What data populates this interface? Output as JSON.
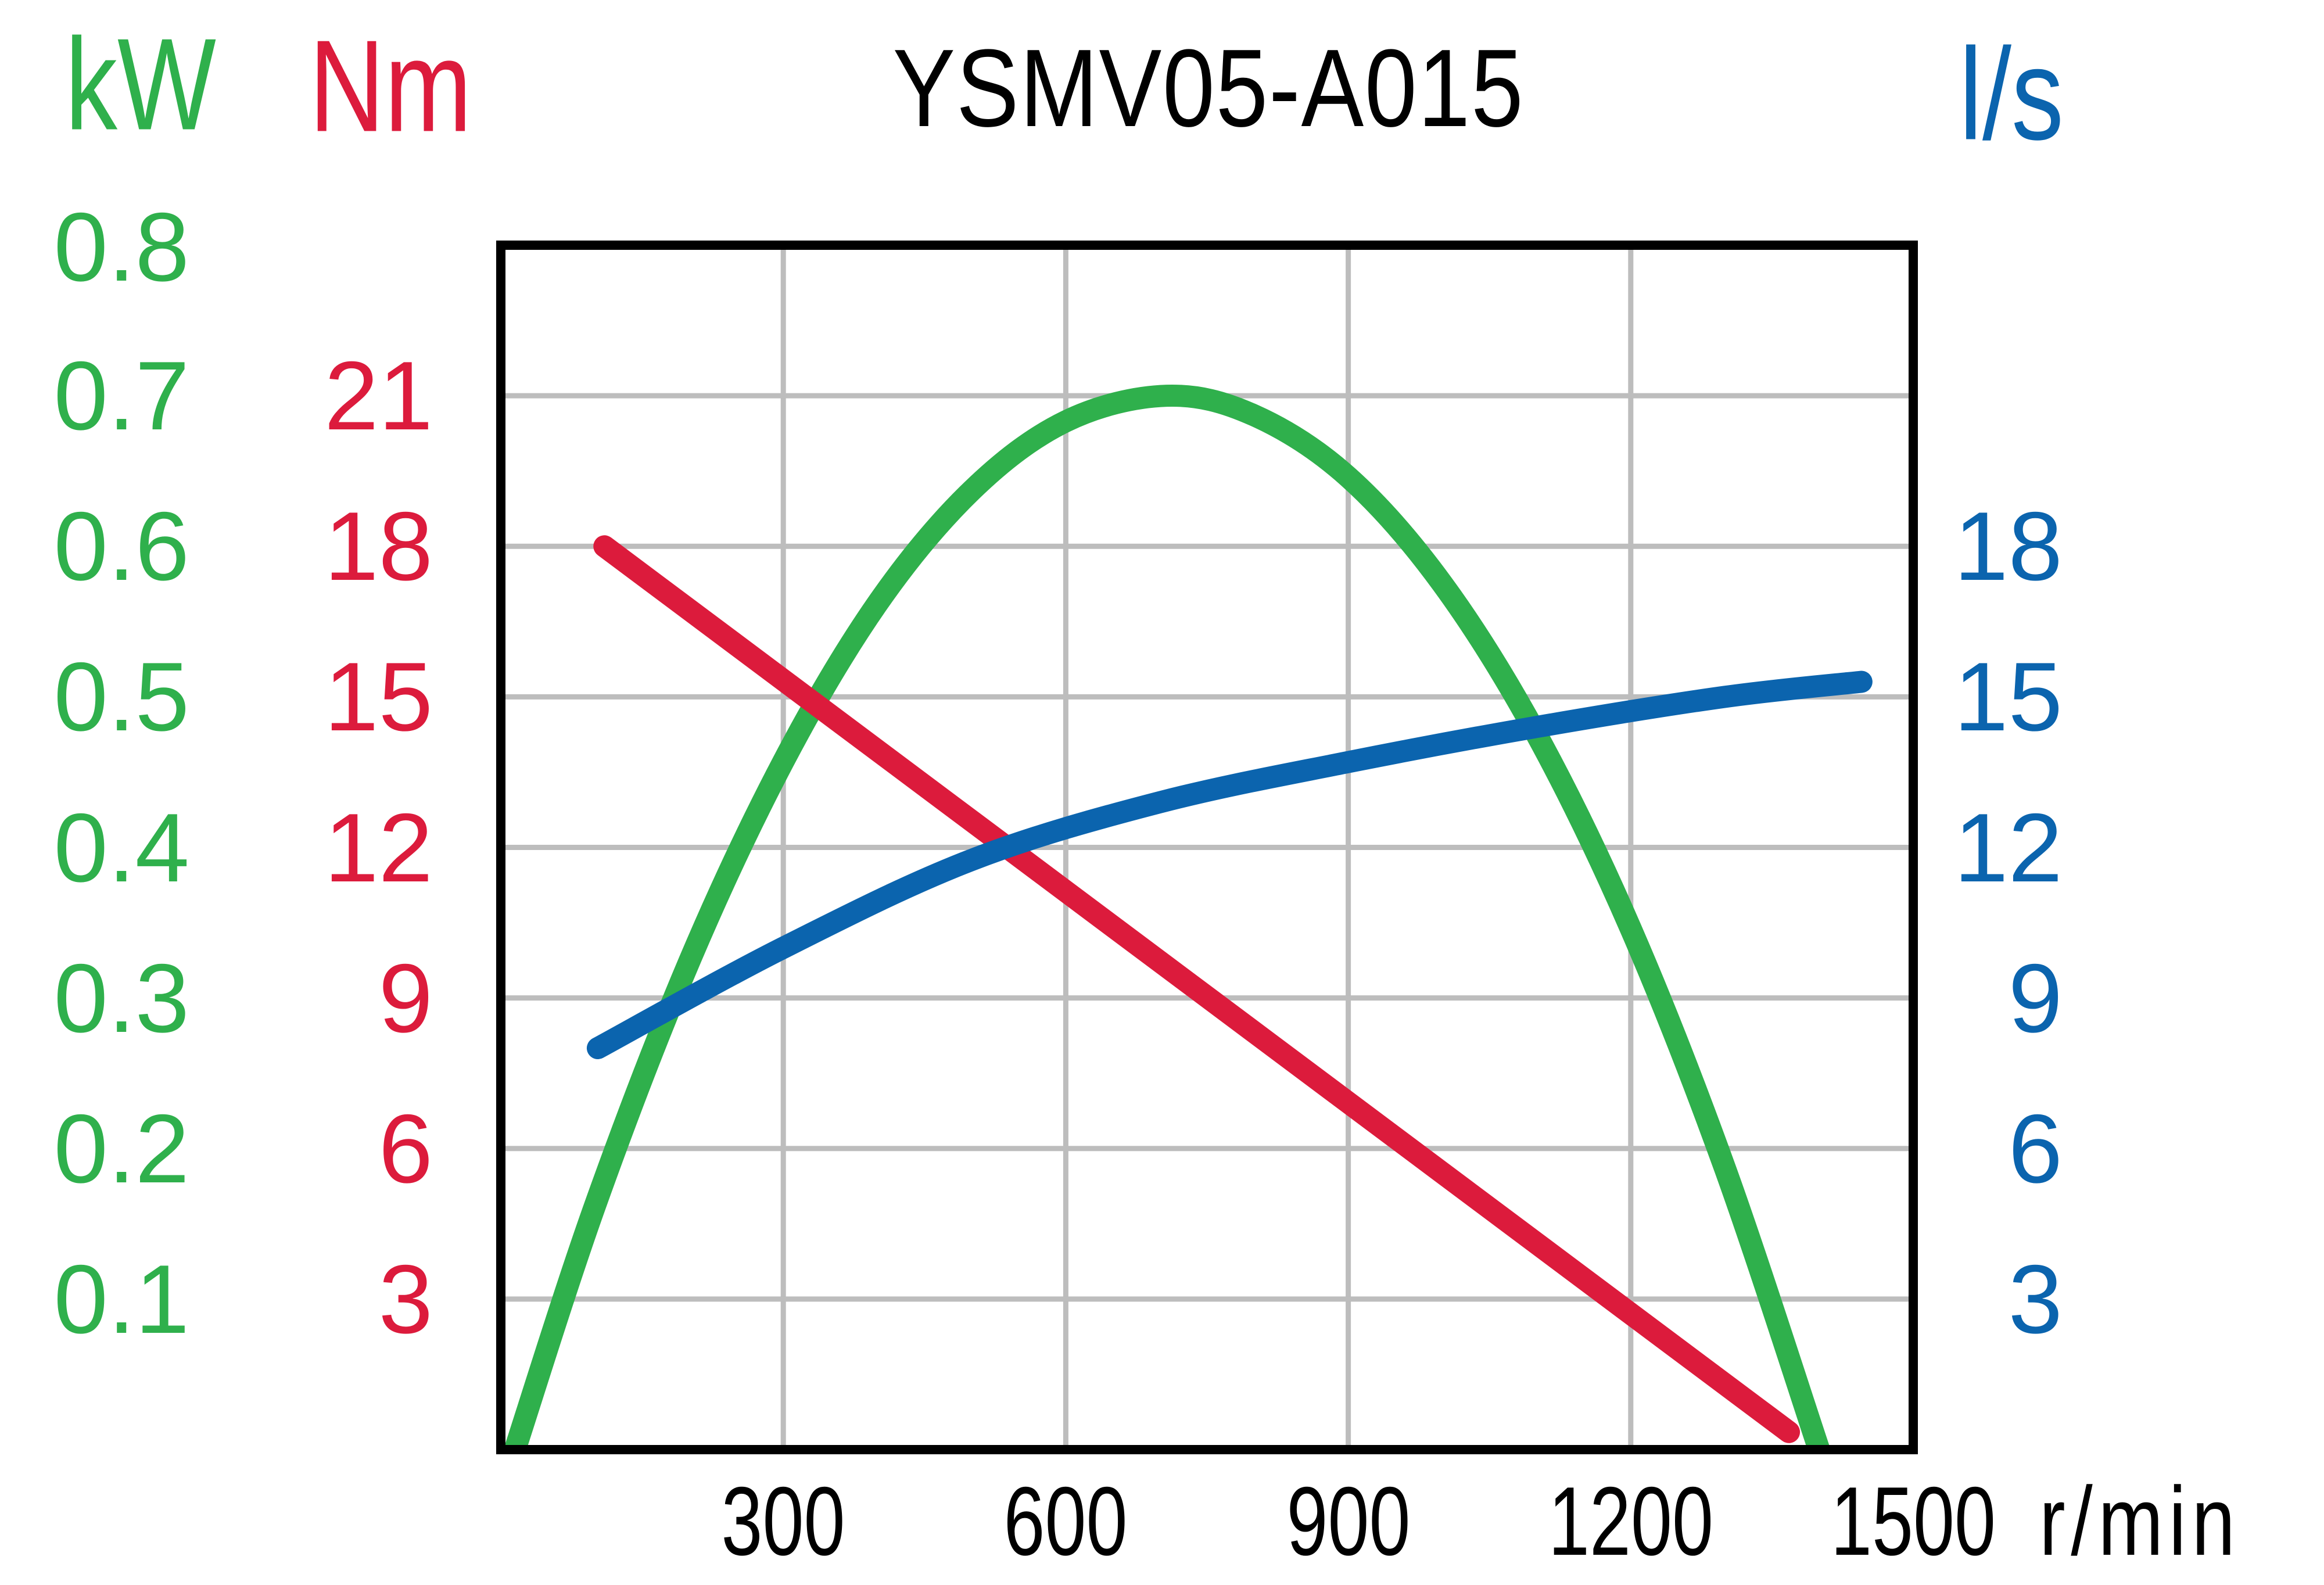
{
  "title": "YSMV05-A015",
  "colors": {
    "power": "#2fb04c",
    "torque": "#dc1b3c",
    "flow": "#0b64ae",
    "grid": "#bdbdbd",
    "frame": "#000000"
  },
  "axes": {
    "power": {
      "unit": "kW",
      "ticks": [
        "0.8",
        "0.7",
        "0.6",
        "0.5",
        "0.4",
        "0.3",
        "0.2",
        "0.1"
      ]
    },
    "torque": {
      "unit": "Nm",
      "ticks": [
        "21",
        "18",
        "15",
        "12",
        "9",
        "6",
        "3"
      ]
    },
    "flow": {
      "unit": "l/s",
      "ticks": [
        "18",
        "15",
        "12",
        "9",
        "6",
        "3"
      ]
    },
    "speed": {
      "unit": "r/min",
      "ticks": [
        "300",
        "600",
        "900",
        "1200",
        "1500"
      ]
    }
  },
  "chart_data": {
    "type": "line",
    "title": "YSMV05-A015",
    "xlabel": "r/min",
    "x_range": [
      0,
      1500
    ],
    "x_gridlines": [
      300,
      600,
      900,
      1200
    ],
    "y_gridlines_24scale": [
      3,
      6,
      9,
      12,
      15,
      18,
      21
    ],
    "grid": "on",
    "legend": "axis-colored labels, no legend box",
    "series": [
      {
        "name": "power",
        "unit": "kW",
        "axis_max": 0.8,
        "color": "#2fb04c",
        "points": [
          [
            15,
            0
          ],
          [
            100,
            0.162
          ],
          [
            200,
            0.324
          ],
          [
            300,
            0.457
          ],
          [
            400,
            0.562
          ],
          [
            500,
            0.637
          ],
          [
            600,
            0.683
          ],
          [
            707,
            0.7
          ],
          [
            800,
            0.687
          ],
          [
            900,
            0.646
          ],
          [
            1000,
            0.575
          ],
          [
            1100,
            0.475
          ],
          [
            1200,
            0.346
          ],
          [
            1300,
            0.187
          ],
          [
            1400,
            0
          ]
        ]
      },
      {
        "name": "torque",
        "unit": "Nm",
        "axis_max": 24,
        "color": "#dc1b3c",
        "points": [
          [
            110,
            18.0
          ],
          [
            1368,
            0.35
          ]
        ]
      },
      {
        "name": "flow",
        "unit": "l/s",
        "axis_max": 24,
        "color": "#0b64ae",
        "points": [
          [
            103,
            8.0
          ],
          [
            300,
            10.0
          ],
          [
            500,
            11.75
          ],
          [
            700,
            12.9
          ],
          [
            900,
            13.7
          ],
          [
            1100,
            14.4
          ],
          [
            1300,
            15.0
          ],
          [
            1445,
            15.3
          ]
        ]
      }
    ]
  }
}
